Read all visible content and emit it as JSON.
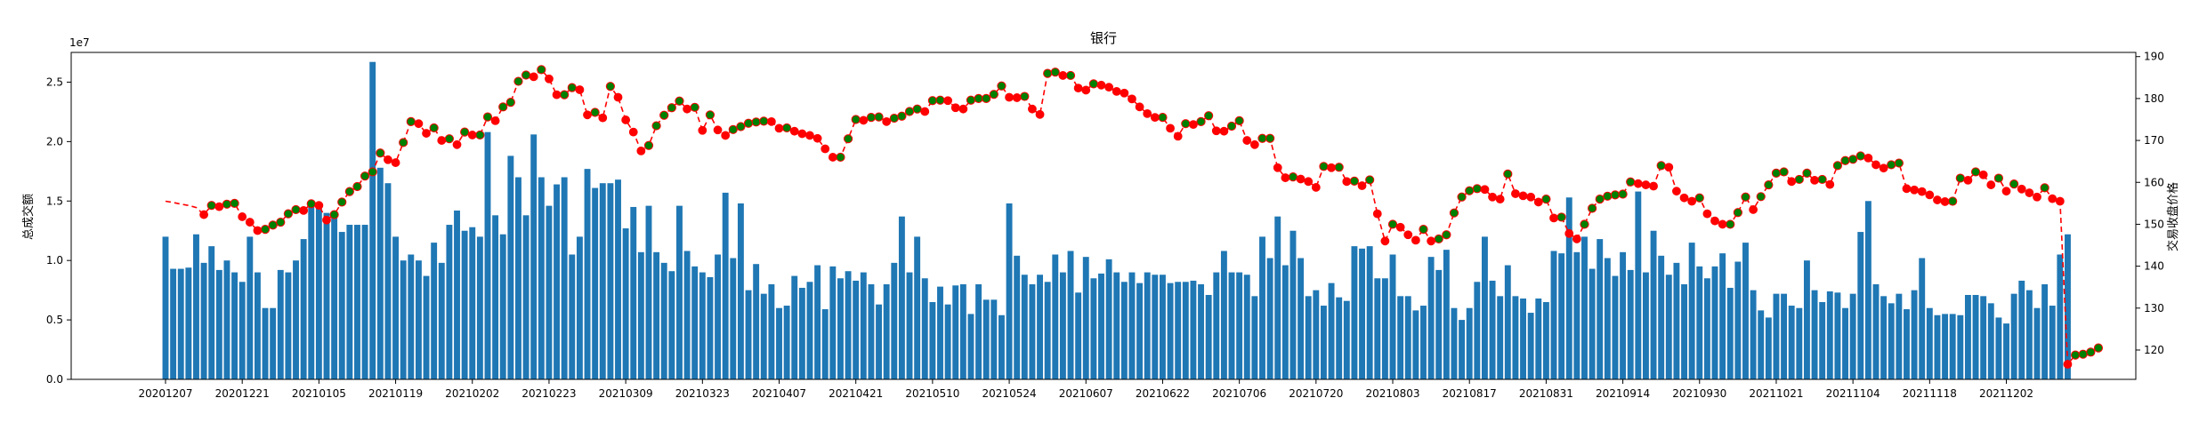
{
  "chart_data": {
    "type": "bar+line",
    "title": "银行",
    "ylabel_left": "总成交额",
    "ylabel_right": "交易收盘价格",
    "left_axis": {
      "multiplier_label": "1e7",
      "ylim": [
        0,
        2.75
      ],
      "ticks": [
        0.0,
        0.5,
        1.0,
        1.5,
        2.0,
        2.5
      ],
      "tick_labels": [
        "0.0",
        "0.5",
        "1.0",
        "1.5",
        "2.0",
        "2.5"
      ]
    },
    "right_axis": {
      "ylim": [
        113,
        191
      ],
      "ticks": [
        120,
        130,
        140,
        150,
        160,
        170,
        180,
        190
      ],
      "tick_labels": [
        "120",
        "130",
        "140",
        "150",
        "160",
        "170",
        "180",
        "190"
      ]
    },
    "x_tick_labels": [
      "20201207",
      "20201221",
      "20210105",
      "20210119",
      "20210202",
      "20210223",
      "20210309",
      "20210323",
      "20210407",
      "20210421",
      "20210510",
      "20210524",
      "20210607",
      "20210622",
      "20210706",
      "20210720",
      "20210803",
      "20210817",
      "20210831",
      "20210914",
      "20210930",
      "20211021",
      "20211104",
      "20211118",
      "20211202"
    ],
    "x_tick_indices": [
      0,
      10,
      20,
      30,
      40,
      50,
      60,
      70,
      80,
      90,
      100,
      110,
      120,
      130,
      140,
      150,
      160,
      170,
      180,
      190,
      200,
      210,
      220,
      230,
      240
    ],
    "n_points": 245,
    "series": [
      {
        "name": "总成交额",
        "type": "bar",
        "color": "#1f77b4",
        "values": [
          1.2,
          0.93,
          0.93,
          0.94,
          1.22,
          0.98,
          1.12,
          0.92,
          1.0,
          0.9,
          0.82,
          1.2,
          0.9,
          0.6,
          0.6,
          0.92,
          0.9,
          1.0,
          1.18,
          1.48,
          1.45,
          1.4,
          1.38,
          1.24,
          1.3,
          1.3,
          1.3,
          2.67,
          1.78,
          1.65,
          1.2,
          1.0,
          1.05,
          1.0,
          0.87,
          1.15,
          0.98,
          1.3,
          1.42,
          1.25,
          1.28,
          1.2,
          2.08,
          1.38,
          1.22,
          1.88,
          1.7,
          1.38,
          2.06,
          1.7,
          1.46,
          1.64,
          1.7,
          1.05,
          1.2,
          1.77,
          1.61,
          1.65,
          1.65,
          1.68,
          1.27,
          1.45,
          1.07,
          1.46,
          1.07,
          0.98,
          0.91,
          1.46,
          1.08,
          0.95,
          0.9,
          0.86,
          1.05,
          1.57,
          1.02,
          1.48,
          0.75,
          0.97,
          0.72,
          0.8,
          0.6,
          0.62,
          0.87,
          0.77,
          0.82,
          0.96,
          0.59,
          0.95,
          0.85,
          0.91,
          0.83,
          0.9,
          0.8,
          0.63,
          0.8,
          0.98,
          1.37,
          0.9,
          1.2,
          0.85,
          0.65,
          0.78,
          0.63,
          0.79,
          0.8,
          0.55,
          0.8,
          0.67,
          0.67,
          0.54,
          1.48,
          1.04,
          0.88,
          0.8,
          0.88,
          0.82,
          1.05,
          0.9,
          1.08,
          0.73,
          1.03,
          0.85,
          0.89,
          1.01,
          0.9,
          0.82,
          0.9,
          0.81,
          0.9,
          0.88,
          0.88,
          0.81,
          0.82,
          0.82,
          0.83,
          0.8,
          0.71,
          0.9,
          1.08,
          0.9,
          0.9,
          0.88,
          0.7,
          1.2,
          1.02,
          1.37,
          0.96,
          1.25,
          1.02,
          0.7,
          0.75,
          0.62,
          0.81,
          0.69,
          0.66,
          1.12,
          1.1,
          1.12,
          0.85,
          0.85,
          1.05,
          0.7,
          0.7,
          0.58,
          0.62,
          1.03,
          0.92,
          1.09,
          0.6,
          0.5,
          0.6,
          0.82,
          1.2,
          0.83,
          0.7,
          0.96,
          0.7,
          0.68,
          0.56,
          0.68,
          0.65,
          1.08,
          1.06,
          1.53,
          1.07,
          1.2,
          0.93,
          1.18,
          1.02,
          0.87,
          1.07,
          0.92,
          1.58,
          0.9,
          1.25,
          1.04,
          0.88,
          0.98,
          0.8,
          1.15,
          0.95,
          0.85,
          0.95,
          1.06,
          0.77,
          0.99,
          1.15,
          0.75,
          0.58,
          0.52,
          0.72,
          0.72,
          0.62,
          0.6,
          1.0,
          0.75,
          0.65,
          0.74,
          0.73,
          0.6,
          0.72,
          1.24,
          1.5,
          0.8,
          0.7,
          0.64,
          0.72,
          0.59,
          0.75,
          1.02,
          0.6,
          0.54,
          0.55,
          0.55,
          0.54,
          0.71,
          0.71,
          0.7,
          0.64,
          0.52,
          0.47,
          0.72,
          0.83,
          0.75,
          0.6,
          0.8,
          0.62,
          1.05,
          1.22
        ]
      },
      {
        "name": "交易收盘价格",
        "type": "line",
        "color": "#ff0000",
        "dash": true,
        "values": [
          155.5,
          155.2,
          154.8,
          154.5,
          154.0,
          152.3,
          154.5,
          154.2,
          154.8,
          155.0,
          151.8,
          150.5,
          148.5,
          148.8,
          149.8,
          150.5,
          152.5,
          153.5,
          153.3,
          154.9,
          154.5,
          151.0,
          152.3,
          155.3,
          157.8,
          159.0,
          161.5,
          162.5,
          167.0,
          165.4,
          164.7,
          169.5,
          174.5,
          174.0,
          171.7,
          173.0,
          170.0,
          170.4,
          169.0,
          172.0,
          171.3,
          171.3,
          175.6,
          174.7,
          178.0,
          179.1,
          184.1,
          185.6,
          185.2,
          186.9,
          184.7,
          180.9,
          180.9,
          182.6,
          182.1,
          176.1,
          176.7,
          175.4,
          182.9,
          180.3,
          174.9,
          172.0,
          167.5,
          168.8,
          173.5,
          176.0,
          177.8,
          179.4,
          177.5,
          177.9,
          172.4,
          176.1,
          172.5,
          171.2,
          172.6,
          173.3,
          174.1,
          174.4,
          174.6,
          174.5,
          172.9,
          173.0,
          172.2,
          171.6,
          171.2,
          170.5,
          168.0,
          166.0,
          166.0,
          170.4,
          175.0,
          174.8,
          175.5,
          175.6,
          174.5,
          175.3,
          175.8,
          176.9,
          177.5,
          176.9,
          179.5,
          179.6,
          179.5,
          177.8,
          177.5,
          179.6,
          180.0,
          180.0,
          181.0,
          183.0,
          180.3,
          180.2,
          180.5,
          177.5,
          176.2,
          186.0,
          186.3,
          185.5,
          185.5,
          182.5,
          182.0,
          183.5,
          183.2,
          182.7,
          181.7,
          181.3,
          179.9,
          178.0,
          176.4,
          175.5,
          175.5,
          172.9,
          171.0,
          174.0,
          173.8,
          174.5,
          175.9,
          172.3,
          172.2,
          173.4,
          174.7,
          170.0,
          169.0,
          170.5,
          170.5,
          163.5,
          161.1,
          161.3,
          160.8,
          160.2,
          158.8,
          163.8,
          163.5,
          163.6,
          160.2,
          160.3,
          159.2,
          160.6,
          152.5,
          146.0,
          150.0,
          149.3,
          147.5,
          146.2,
          148.8,
          146.0,
          146.5,
          147.5,
          152.7,
          156.5,
          158.0,
          158.5,
          158.3,
          156.5,
          156.0,
          162.0,
          157.3,
          156.8,
          156.5,
          155.3,
          156.0,
          151.5,
          151.7,
          147.8,
          146.5,
          150.0,
          153.8,
          156.0,
          156.7,
          157.0,
          157.2,
          160.1,
          159.7,
          159.4,
          159.1,
          164.0,
          163.6,
          157.9,
          156.3,
          155.5,
          156.3,
          152.5,
          150.8,
          150.0,
          150.0,
          152.8,
          156.5,
          153.5,
          156.6,
          159.4,
          162.2,
          162.5,
          160.2,
          160.7,
          162.2,
          160.5,
          160.7,
          159.5,
          164.0,
          165.2,
          165.5,
          166.3,
          165.8,
          164.2,
          163.4,
          164.2,
          164.6,
          158.5,
          158.2,
          157.8,
          157.0,
          155.8,
          155.4,
          155.5,
          161.0,
          160.5,
          162.5,
          161.8,
          159.4,
          161.0,
          157.9,
          159.6,
          158.4,
          157.5,
          156.5,
          158.7,
          156.1,
          155.5,
          116.6,
          118.8,
          119.0,
          119.5,
          120.5
        ]
      },
      {
        "name": "涨",
        "type": "scatter",
        "color": "#008000"
      },
      {
        "name": "跌",
        "type": "scatter",
        "color": "#ff0000"
      }
    ],
    "grid": false,
    "legend": "none"
  }
}
